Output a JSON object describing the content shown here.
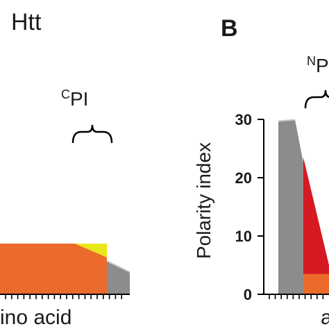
{
  "panel_a": {
    "title": "Htt",
    "bracket_label": "PI",
    "bracket_superscript": "C",
    "xlabel": "ino acid"
  },
  "panel_b": {
    "panel_letter": "B",
    "bracket_label": "P",
    "bracket_superscript": "N",
    "xlabel": "a"
  },
  "colors": {
    "orange": "#ec6a2c",
    "red": "#d51a23",
    "gray": "#8c8c8c",
    "light_gray": "#c8c8c8",
    "yellow": "#e9e61a",
    "axis": "#000000"
  },
  "chart_data": [
    {
      "type": "area",
      "panel": "A",
      "title": "Htt",
      "xlabel": "ino acid",
      "ylabel": "",
      "note": "partially visible (cropped on the left)",
      "series": [
        {
          "color": "orange",
          "values": [
            7.3,
            7.3,
            7.3,
            7.3,
            2.3,
            2.3
          ]
        },
        {
          "color": "yellow",
          "values": [
            0,
            0,
            0,
            7.3,
            7.3,
            7.3
          ]
        },
        {
          "color": "gray",
          "values": [
            0,
            0,
            0,
            0,
            4.8,
            3.2
          ]
        }
      ]
    },
    {
      "type": "area",
      "panel": "B",
      "ylabel": "Polarity index",
      "xlabel": "a",
      "ylim": [
        0,
        30
      ],
      "yticks": [
        "0",
        "10",
        "20",
        "30"
      ],
      "note": "partially visible (cropped on the right)",
      "series": [
        {
          "color": "gray",
          "values": [
            29.7,
            29.7,
            0
          ]
        },
        {
          "color": "red",
          "values": [
            0,
            23.5,
            5
          ]
        },
        {
          "color": "orange",
          "values": [
            0,
            3.5,
            3.5
          ]
        }
      ]
    }
  ]
}
